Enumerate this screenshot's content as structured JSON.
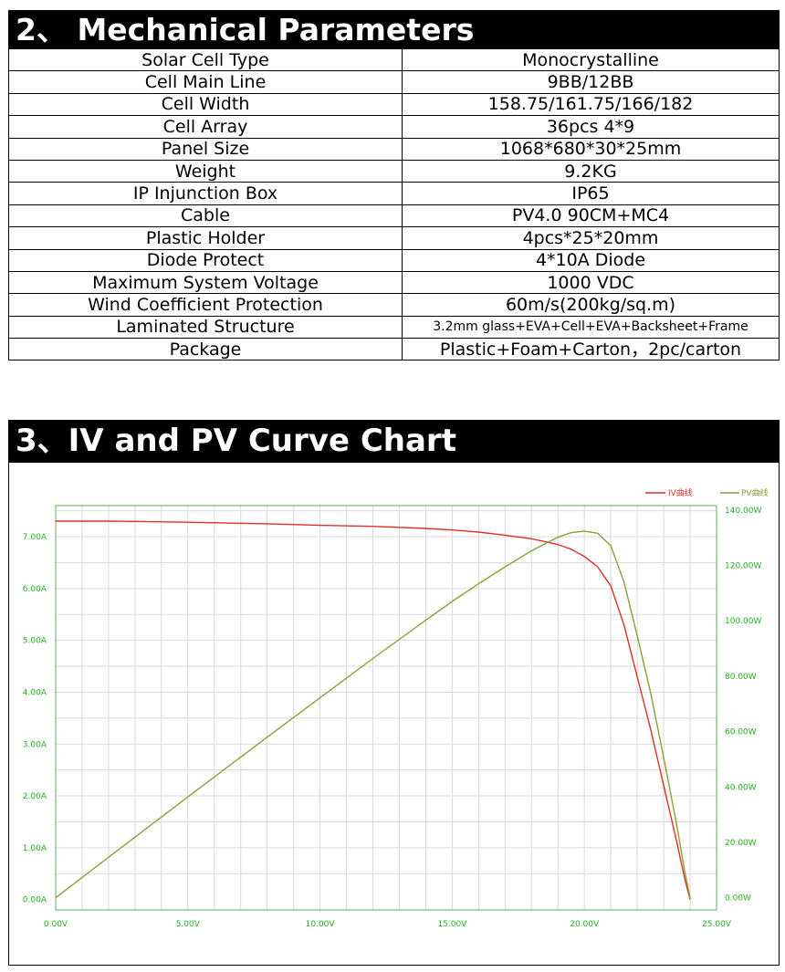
{
  "section2": {
    "title": "2、 Mechanical Parameters"
  },
  "params": [
    {
      "label": "Solar Cell Type",
      "value": "Monocrystalline"
    },
    {
      "label": "Cell Main Line",
      "value": "9BB/12BB"
    },
    {
      "label": "Cell Width",
      "value": "158.75/161.75/166/182"
    },
    {
      "label": "Cell Array",
      "value": "36pcs 4*9"
    },
    {
      "label": "Panel Size",
      "value": "1068*680*30*25mm"
    },
    {
      "label": "Weight",
      "value": "9.2KG"
    },
    {
      "label": "IP Injunction Box",
      "value": "IP65"
    },
    {
      "label": "Cable",
      "value": "PV4.0 90CM+MC4"
    },
    {
      "label": "Plastic Holder",
      "value": "4pcs*25*20mm"
    },
    {
      "label": "Diode Protect",
      "value": "4*10A Diode"
    },
    {
      "label": "Maximum System Voltage",
      "value": "1000 VDC"
    },
    {
      "label": "Wind Coefficient Protection",
      "value": "60m/s(200kg/sq.m)"
    },
    {
      "label": "Laminated Structure",
      "value": "3.2mm glass+EVA+Cell+EVA+Backsheet+Frame"
    },
    {
      "label": "Package",
      "value": "Plastic+Foam+Carton，2pc/carton"
    }
  ],
  "section3": {
    "title": "3、IV and PV Curve Chart"
  },
  "chart_data": {
    "type": "line",
    "title": "",
    "xlabel": "",
    "ylabel": "",
    "y2label": "",
    "grid": true,
    "legend": "top-right",
    "x_ticks": [
      "0.00V",
      "5.00V",
      "10.00V",
      "15.00V",
      "20.00V",
      "25.00V"
    ],
    "y_ticks": [
      "0.00A",
      "1.00A",
      "2.00A",
      "3.00A",
      "4.00A",
      "5.00A",
      "6.00A",
      "7.00A"
    ],
    "y2_ticks": [
      "0.00W",
      "20.00W",
      "40.00W",
      "60.00W",
      "80.00W",
      "100.00W",
      "120.00W",
      "140.00W"
    ],
    "xlim": [
      0,
      25
    ],
    "ylim": [
      -0.2,
      7.6
    ],
    "y2lim": [
      -4.4,
      141.6
    ],
    "series": [
      {
        "name": "IV曲线",
        "axis": "left",
        "color": "#e0302a",
        "x": [
          0,
          2,
          5,
          8,
          10,
          12,
          14,
          15,
          16,
          17,
          18,
          19,
          19.5,
          20,
          20.5,
          21,
          21.5,
          22,
          22.5,
          23,
          23.5,
          23.8,
          24
        ],
        "y": [
          7.3,
          7.3,
          7.28,
          7.25,
          7.22,
          7.2,
          7.16,
          7.13,
          7.09,
          7.03,
          6.96,
          6.85,
          6.76,
          6.62,
          6.42,
          6.05,
          5.3,
          4.3,
          3.3,
          2.2,
          1.1,
          0.4,
          0
        ]
      },
      {
        "name": "PV曲线",
        "axis": "right",
        "color": "#8aa23a",
        "x": [
          0,
          2,
          5,
          8,
          10,
          12,
          14,
          15,
          16,
          17,
          18,
          19,
          19.5,
          20,
          20.5,
          21,
          21.5,
          22,
          22.5,
          23,
          23.5,
          23.8,
          24
        ],
        "y": [
          0,
          14.6,
          36.4,
          58,
          72.2,
          86.4,
          100.2,
          107,
          113.4,
          119.5,
          125.3,
          130.2,
          131.8,
          132.4,
          131.6,
          127.1,
          114,
          94.6,
          74.3,
          50.6,
          25.9,
          9.5,
          0
        ]
      }
    ],
    "colors": {
      "axis_text": "#22b022",
      "grid": "#d9d9d9",
      "plot_border": "#5ab05a"
    }
  }
}
